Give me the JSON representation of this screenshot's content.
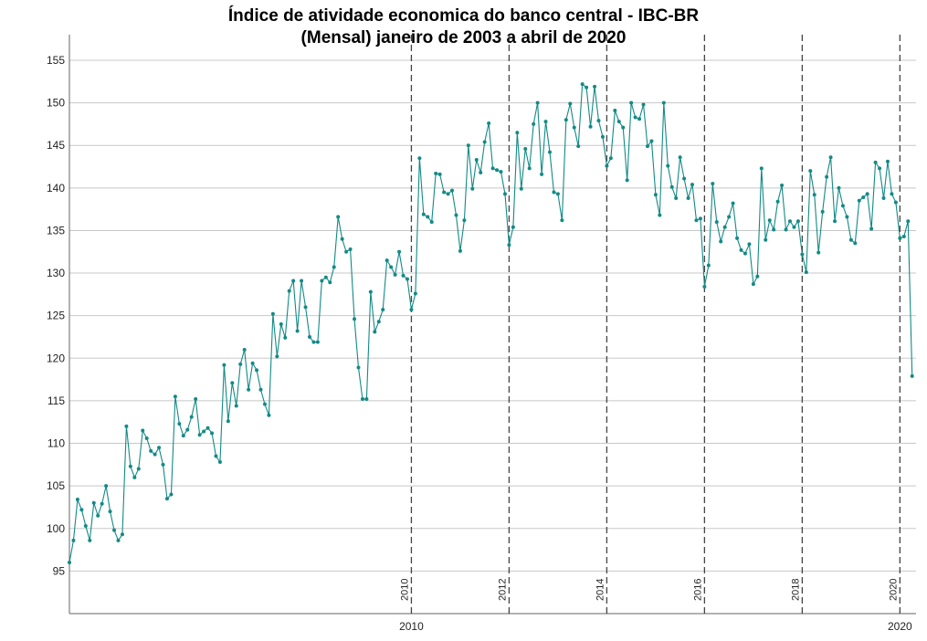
{
  "chart_data": {
    "type": "line",
    "title_line1": "Índice de atividade economica do banco central - IBC-BR",
    "title_line2": "(Mensal) janeiro de 2003 a abril de 2020",
    "xlabel": "",
    "ylabel": "",
    "ylim": [
      90,
      158
    ],
    "xlim": [
      2003.0,
      2020.33
    ],
    "yticks": [
      95,
      100,
      105,
      110,
      115,
      120,
      125,
      130,
      135,
      140,
      145,
      150,
      155
    ],
    "xticks": [
      {
        "value": 2010.0,
        "label": "2010"
      },
      {
        "value": 2020.0,
        "label": "2020"
      }
    ],
    "grid": "horizontal",
    "legend": "none",
    "colors": {
      "series": "#138a86",
      "vlines": "#444444",
      "grid": "#c8c8c8",
      "axis": "#666666"
    },
    "vlines": [
      {
        "x": 2010.0,
        "label": "2010"
      },
      {
        "x": 2012.0,
        "label": "2012"
      },
      {
        "x": 2014.0,
        "label": "2014"
      },
      {
        "x": 2016.0,
        "label": "2016"
      },
      {
        "x": 2018.0,
        "label": "2018"
      },
      {
        "x": 2020.0,
        "label": "2020"
      }
    ],
    "start": "2003-01",
    "series": [
      {
        "values": [
          96.0,
          98.6,
          103.4,
          102.2,
          100.3,
          98.6,
          103.0,
          101.5,
          102.9,
          105.0,
          102.0,
          99.8,
          98.6,
          99.3,
          112.0,
          107.3,
          106.0,
          107.0,
          111.5,
          110.6,
          109.1,
          108.7,
          109.5,
          107.5,
          103.5,
          104.0,
          115.5,
          112.3,
          110.9,
          111.6,
          113.1,
          115.2,
          111.0,
          111.4,
          111.8,
          111.2,
          108.5,
          107.8,
          119.2,
          112.6,
          117.1,
          114.4,
          119.3,
          121.0,
          116.3,
          119.4,
          118.6,
          116.3,
          114.6,
          113.3,
          125.2,
          120.2,
          124.0,
          122.4,
          127.9,
          129.1,
          123.2,
          129.1,
          126.0,
          122.5,
          121.9,
          121.9,
          129.1,
          129.5,
          128.9,
          130.7,
          136.6,
          134.0,
          132.5,
          132.8,
          124.6,
          118.9,
          115.2,
          115.2,
          127.8,
          123.1,
          124.3,
          125.7,
          131.5,
          130.7,
          129.8,
          132.5,
          129.7,
          129.3,
          125.7,
          127.6,
          143.5,
          136.9,
          136.6,
          136.0,
          141.7,
          141.6,
          139.5,
          139.3,
          139.7,
          136.8,
          132.6,
          136.2,
          145.0,
          139.9,
          143.3,
          141.8,
          145.4,
          147.6,
          142.3,
          142.1,
          141.9,
          139.3,
          133.3,
          135.4,
          146.5,
          139.9,
          144.6,
          142.3,
          147.5,
          150.0,
          141.6,
          147.8,
          144.2,
          139.5,
          139.3,
          136.2,
          148.0,
          149.9,
          147.1,
          144.9,
          152.2,
          151.8,
          147.2,
          151.9,
          147.9,
          146.0,
          142.6,
          143.5,
          149.1,
          147.8,
          147.1,
          140.9,
          150.0,
          148.3,
          148.1,
          149.8,
          144.9,
          145.5,
          139.2,
          136.8,
          150.0,
          142.6,
          140.1,
          138.8,
          143.6,
          141.1,
          138.8,
          140.4,
          136.2,
          136.4,
          128.4,
          130.9,
          140.5,
          136.0,
          133.7,
          135.4,
          136.6,
          138.2,
          134.1,
          132.7,
          132.3,
          133.4,
          128.7,
          129.6,
          142.3,
          133.9,
          136.2,
          135.1,
          138.4,
          140.3,
          135.1,
          136.1,
          135.4,
          136.1,
          132.2,
          130.1,
          142.0,
          139.2,
          132.4,
          137.2,
          141.3,
          143.6,
          136.1,
          140.0,
          137.9,
          136.6,
          133.9,
          133.5,
          138.5,
          138.9,
          139.3,
          135.2,
          143.0,
          142.3,
          138.8,
          143.1,
          139.3,
          138.3,
          134.1,
          134.3,
          136.1,
          117.9
        ]
      }
    ]
  }
}
